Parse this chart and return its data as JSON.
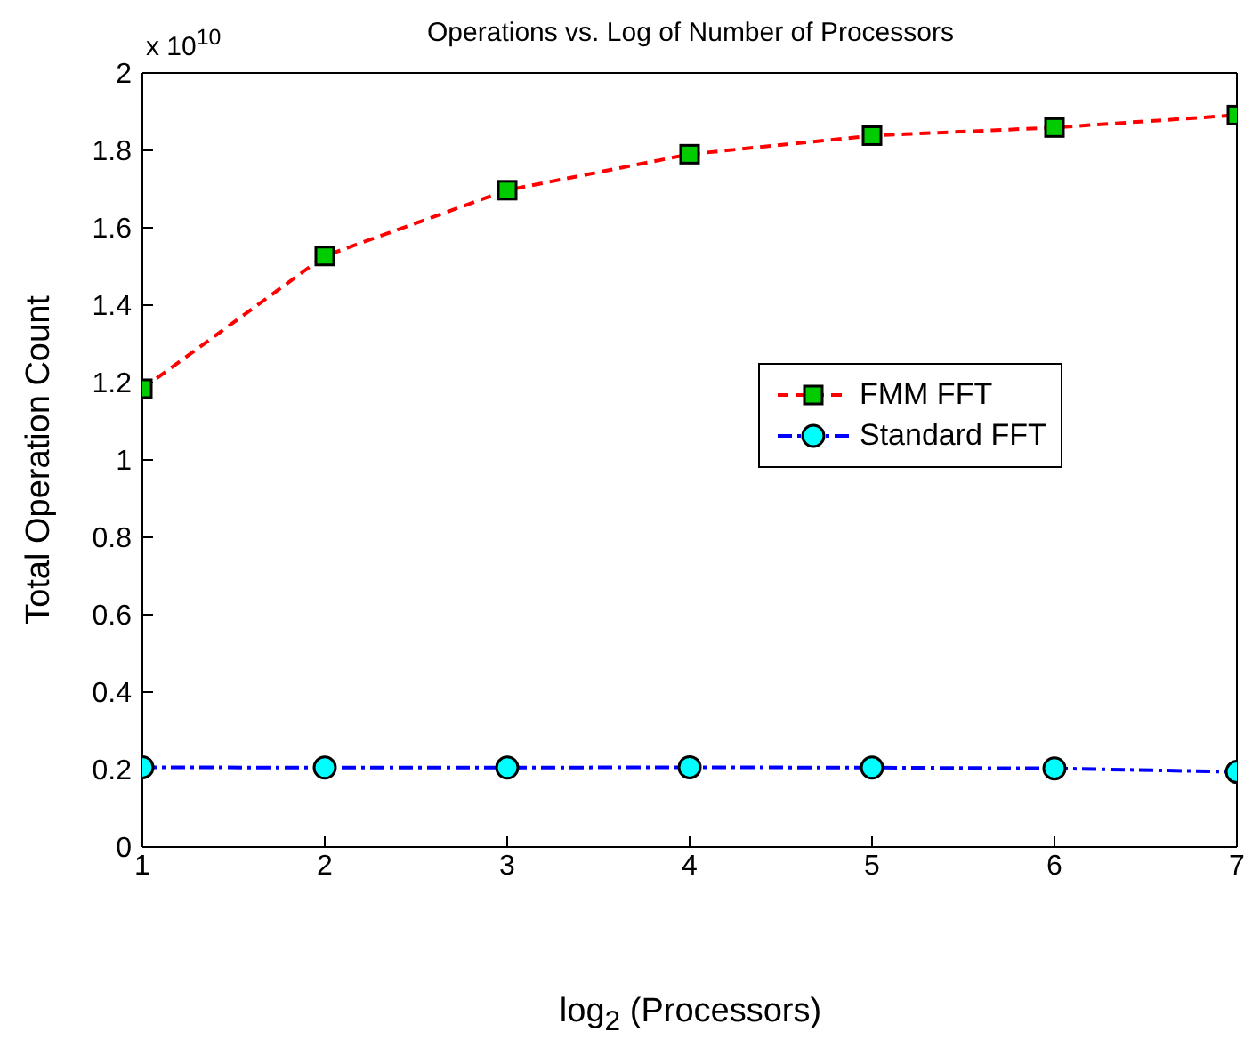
{
  "chart_data": {
    "type": "line",
    "title": "Operations vs. Log of Number of Processors",
    "xlabel": "log$_{2}$ (Processors)",
    "ylabel": "Total Operation Count",
    "annotations": [
      "x 10$^{10}$"
    ],
    "x": [
      1,
      2,
      3,
      4,
      5,
      6,
      7
    ],
    "series": [
      {
        "name": "FMM FFT",
        "color": "#ff0000",
        "marker": "square",
        "line_style": "dashed",
        "values": [
          1.184,
          1.527,
          1.697,
          1.79,
          1.838,
          1.859,
          1.891
        ]
      },
      {
        "name": "Standard FFT",
        "color": "#0000ff",
        "marker": "circle",
        "line_style": "dashdot",
        "values": [
          0.206,
          0.205,
          0.205,
          0.206,
          0.205,
          0.203,
          0.194
        ]
      }
    ],
    "xlim": [
      1,
      7
    ],
    "xticks": [
      1,
      2,
      3,
      4,
      5,
      6,
      7
    ],
    "ylim": [
      0,
      2
    ],
    "yticks": [
      0,
      0.2,
      0.4,
      0.6,
      0.8,
      1,
      1.2,
      1.4,
      1.6,
      1.8,
      2
    ],
    "grid": false,
    "legend": "right"
  }
}
